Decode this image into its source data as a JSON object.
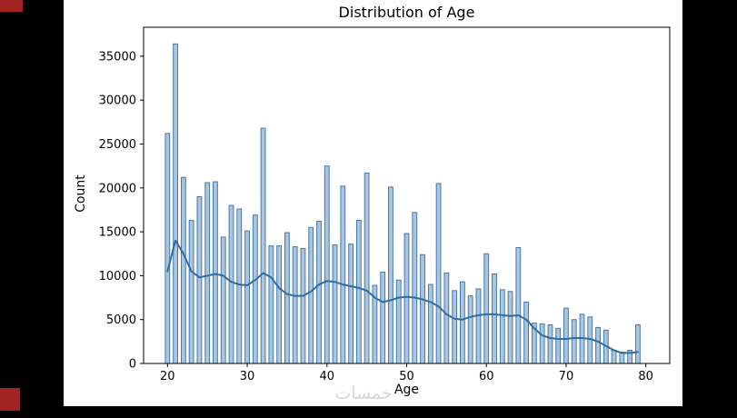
{
  "page": {
    "background_color": "#000000",
    "figure_background": "#ffffff",
    "corner_artifact_color": "#a32323"
  },
  "watermark": {
    "text": "خمسات"
  },
  "chart_data": {
    "type": "bar",
    "subtype": "histogram_with_kde",
    "title": "Distribution of Age",
    "xlabel": "Age",
    "ylabel": "Count",
    "grid": false,
    "legend": "none",
    "age_start": 20,
    "categories": [
      20,
      21,
      22,
      23,
      24,
      25,
      26,
      27,
      28,
      29,
      30,
      31,
      32,
      33,
      34,
      35,
      36,
      37,
      38,
      39,
      40,
      41,
      42,
      43,
      44,
      45,
      46,
      47,
      48,
      49,
      50,
      51,
      52,
      53,
      54,
      55,
      56,
      57,
      58,
      59,
      60,
      61,
      62,
      63,
      64,
      65,
      66,
      67,
      68,
      69,
      70,
      71,
      72,
      73,
      74,
      75,
      76,
      77,
      78,
      79
    ],
    "values": [
      26200,
      36400,
      21200,
      16300,
      19000,
      20600,
      20700,
      14400,
      18000,
      17600,
      15100,
      16900,
      26800,
      13400,
      13400,
      14900,
      13300,
      13100,
      15500,
      16200,
      22500,
      13500,
      20200,
      13600,
      16300,
      21700,
      8900,
      10400,
      20100,
      9500,
      14800,
      17200,
      12400,
      9000,
      20500,
      10300,
      8300,
      9300,
      7700,
      8500,
      12500,
      10200,
      8400,
      8200,
      13200,
      7000,
      4600,
      4500,
      4400,
      4000,
      6300,
      5000,
      5600,
      5300,
      4100,
      3800,
      1500,
      1300,
      1500,
      4400
    ],
    "kde": [
      [
        20,
        10500
      ],
      [
        21,
        14000
      ],
      [
        22,
        12500
      ],
      [
        23,
        10500
      ],
      [
        24,
        9800
      ],
      [
        25,
        10000
      ],
      [
        26,
        10200
      ],
      [
        27,
        10000
      ],
      [
        28,
        9300
      ],
      [
        29,
        9000
      ],
      [
        30,
        8900
      ],
      [
        31,
        9500
      ],
      [
        32,
        10300
      ],
      [
        33,
        9800
      ],
      [
        34,
        8600
      ],
      [
        35,
        7900
      ],
      [
        36,
        7700
      ],
      [
        37,
        7700
      ],
      [
        38,
        8200
      ],
      [
        39,
        9000
      ],
      [
        40,
        9400
      ],
      [
        41,
        9300
      ],
      [
        42,
        9000
      ],
      [
        43,
        8800
      ],
      [
        44,
        8600
      ],
      [
        45,
        8300
      ],
      [
        46,
        7500
      ],
      [
        47,
        7000
      ],
      [
        48,
        7200
      ],
      [
        49,
        7500
      ],
      [
        50,
        7600
      ],
      [
        51,
        7500
      ],
      [
        52,
        7300
      ],
      [
        53,
        7000
      ],
      [
        54,
        6500
      ],
      [
        55,
        5600
      ],
      [
        56,
        5100
      ],
      [
        57,
        5000
      ],
      [
        58,
        5300
      ],
      [
        59,
        5500
      ],
      [
        60,
        5600
      ],
      [
        61,
        5600
      ],
      [
        62,
        5500
      ],
      [
        63,
        5400
      ],
      [
        64,
        5500
      ],
      [
        65,
        5000
      ],
      [
        66,
        4000
      ],
      [
        67,
        3200
      ],
      [
        68,
        2900
      ],
      [
        69,
        2800
      ],
      [
        70,
        2800
      ],
      [
        71,
        2900
      ],
      [
        72,
        2900
      ],
      [
        73,
        2800
      ],
      [
        74,
        2500
      ],
      [
        75,
        2000
      ],
      [
        76,
        1500
      ],
      [
        77,
        1200
      ],
      [
        78,
        1200
      ],
      [
        79,
        1300
      ]
    ],
    "xticks": [
      20,
      30,
      40,
      50,
      60,
      70,
      80
    ],
    "yticks": [
      0,
      5000,
      10000,
      15000,
      20000,
      25000,
      30000,
      35000
    ],
    "xlim": [
      17,
      83
    ],
    "ylim": [
      0,
      38300
    ],
    "bar_fill": "#a9c6e0",
    "bar_edge": "#4878a8",
    "bar_shrink": 0.55,
    "line_color": "#2e6da4",
    "axis_color": "#000000",
    "tick_font_px": 13
  }
}
